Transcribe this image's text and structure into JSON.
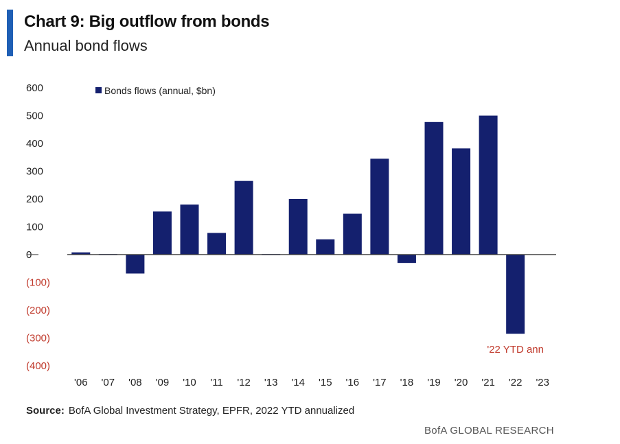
{
  "header": {
    "title": "Chart 9: Big outflow from bonds",
    "subtitle": "Annual bond flows"
  },
  "footer": {
    "source_label": "Source:",
    "source_text": "BofA Global Investment Strategy, EPFR, 2022  YTD annualized",
    "brand": "BofA GLOBAL RESEARCH"
  },
  "chart_data": {
    "type": "bar",
    "categories": [
      "'06",
      "'07",
      "'08",
      "'09",
      "'10",
      "'11",
      "'12",
      "'13",
      "'14",
      "'15",
      "'16",
      "'17",
      "'18",
      "'19",
      "'20",
      "'21",
      "'22",
      "'23"
    ],
    "series": [
      {
        "name": "Bonds flows (annual, $bn)",
        "values": [
          8,
          2,
          -68,
          155,
          180,
          78,
          265,
          2,
          200,
          55,
          147,
          345,
          -30,
          477,
          382,
          500,
          -285,
          null
        ]
      }
    ],
    "ylim": [
      -400,
      600
    ],
    "yticks": [
      600,
      500,
      400,
      300,
      200,
      100,
      0,
      -100,
      -200,
      -300,
      -400
    ],
    "ytick_labels": [
      "600",
      "500",
      "400",
      "300",
      "200",
      "100",
      "0",
      "(100)",
      "(200)",
      "(300)",
      "(400)"
    ],
    "annotation": {
      "text": "'22 YTD ann",
      "category": "'22"
    },
    "legend_position": "top-left",
    "grid": false,
    "colors": {
      "bar": "#14206e",
      "negative_label": "#c0392b",
      "annotation": "#c0392b",
      "axis_label": "#222222",
      "accent": "#1f5fb5"
    }
  }
}
